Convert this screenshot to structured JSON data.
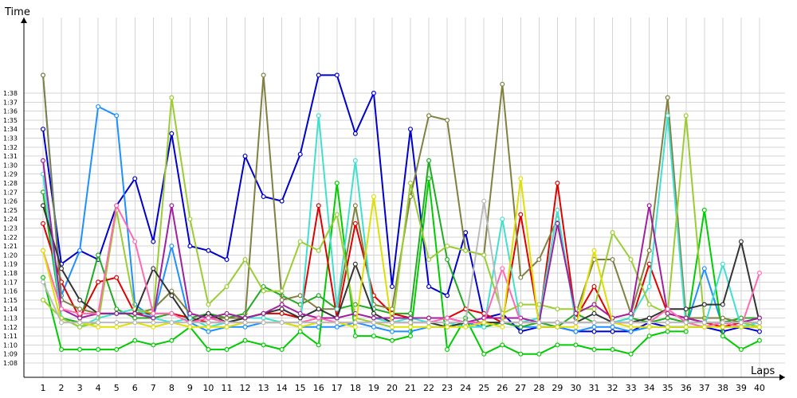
{
  "chart_data": {
    "type": "line",
    "title": "",
    "xlabel": "Laps",
    "ylabel": "Time",
    "xlim": [
      1,
      40
    ],
    "ylim_seconds": [
      61,
      98
    ],
    "grid": true,
    "x_ticks": [
      "1",
      "2",
      "3",
      "4",
      "5",
      "6",
      "7",
      "8",
      "9",
      "10",
      "11",
      "12",
      "13",
      "14",
      "15",
      "16",
      "17",
      "18",
      "19",
      "20",
      "21",
      "22",
      "23",
      "24",
      "25",
      "26",
      "27",
      "28",
      "29",
      "30",
      "31",
      "32",
      "33",
      "34",
      "35",
      "36",
      "37",
      "38",
      "39",
      "40"
    ],
    "y_ticks": [
      "1:08",
      "1:09",
      "1:10",
      "1:11",
      "1:12",
      "1:13",
      "1:14",
      "1:15",
      "1:16",
      "1:17",
      "1:18",
      "1:19",
      "1:20",
      "1:21",
      "1:22",
      "1:23",
      "1:24",
      "1:25",
      "1:26",
      "1:27",
      "1:28",
      "1:29",
      "1:30",
      "1:31",
      "1:32",
      "1:33",
      "1:34",
      "1:35",
      "1:36",
      "1:37",
      "1:38"
    ],
    "series": [
      {
        "color": "#0000cc",
        "values": [
          94,
          79,
          80.5,
          79.5,
          85.5,
          88.5,
          81.5,
          93.5,
          81,
          80.5,
          79.5,
          91,
          86.5,
          86,
          91.2,
          100,
          100,
          93.5,
          98,
          76.5,
          94,
          76.5,
          75.5,
          82.5,
          73,
          73.5,
          71.5,
          72,
          72,
          71.5,
          71.5,
          71.5,
          71.5,
          72.5,
          72,
          72,
          72,
          71.5,
          72,
          71.5
        ]
      },
      {
        "color": "#1e90ff",
        "values": [
          100,
          75.5,
          80.5,
          96.5,
          95.5,
          74.5,
          73,
          81,
          72.5,
          71.5,
          72,
          72,
          72.5,
          72.5,
          72,
          72,
          72,
          72.5,
          72,
          71.5,
          71.5,
          72,
          72,
          72.5,
          72,
          72.5,
          72,
          72,
          72,
          71.5,
          72,
          72,
          71.5,
          72,
          72,
          72,
          78.5,
          72,
          72,
          72
        ]
      },
      {
        "color": "#00cc00",
        "values": [
          77.5,
          69.5,
          69.5,
          69.5,
          69.5,
          70.5,
          70,
          70.5,
          72,
          69.5,
          69.5,
          70.5,
          70,
          69.5,
          71.5,
          70,
          88,
          71,
          71,
          70.5,
          71,
          88.5,
          69.5,
          73,
          69,
          70,
          69,
          69,
          70,
          70,
          69.5,
          69.5,
          69,
          71,
          71.5,
          71.5,
          85,
          71,
          69.5,
          70.5
        ]
      },
      {
        "color": "#22aa22",
        "values": [
          87,
          73,
          72.5,
          80,
          74,
          73,
          73,
          73.5,
          73,
          73.5,
          73,
          73.5,
          76.5,
          75.5,
          74.5,
          75.5,
          74,
          74.5,
          74,
          73.5,
          73.5,
          90.5,
          79.5,
          74,
          72,
          72.5,
          72,
          72.5,
          72,
          73.5,
          72.5,
          72.5,
          73,
          72.5,
          73,
          72.5,
          72.5,
          72.5,
          73,
          73
        ]
      },
      {
        "color": "#e00000",
        "values": [
          83.5,
          77,
          73,
          77,
          77.5,
          73.5,
          73.5,
          73.5,
          73,
          72.5,
          72.5,
          73,
          73.5,
          73.5,
          73,
          85.5,
          73,
          83.5,
          75.5,
          73.5,
          73,
          73,
          73,
          74,
          73.5,
          72.5,
          84.5,
          72.5,
          88,
          73,
          76.5,
          72.5,
          72.5,
          79,
          73.5,
          73,
          72.5,
          72,
          72.5,
          72.5
        ]
      },
      {
        "color": "#808040",
        "values": [
          100,
          75,
          74,
          73.5,
          73.5,
          73.5,
          74,
          76,
          73.5,
          73,
          73,
          73,
          100,
          75,
          75.5,
          74,
          74,
          85.5,
          74.5,
          74,
          86.5,
          95.5,
          95,
          80.5,
          80,
          99,
          77.5,
          79.5,
          84,
          73.5,
          79.5,
          79.5,
          73.5,
          80.5,
          97.5,
          73,
          73,
          73,
          72.5,
          73
        ]
      },
      {
        "color": "#40e0d0",
        "values": [
          89,
          73,
          72,
          73,
          73.5,
          74,
          73,
          72.5,
          73,
          72,
          72.5,
          73,
          73,
          72.5,
          72,
          95.5,
          74,
          90.5,
          73,
          72.5,
          73,
          72.5,
          72.5,
          72,
          72,
          84,
          72.5,
          73,
          85,
          72.5,
          72.5,
          72.5,
          73,
          76.5,
          95.5,
          72,
          72,
          79,
          72,
          72.5
        ]
      },
      {
        "color": "#9acd32",
        "values": [
          75,
          73,
          72,
          72.5,
          85,
          74,
          73.5,
          97.5,
          84,
          74.5,
          76.5,
          79.5,
          76,
          76,
          81.5,
          80.5,
          84.5,
          73,
          72.5,
          72,
          88,
          79.5,
          81,
          80.5,
          80,
          73.5,
          74.5,
          74.5,
          74,
          74,
          74,
          82.5,
          79.5,
          74.5,
          73.5,
          95.5,
          72.5,
          72.5,
          72.5,
          72
        ]
      },
      {
        "color": "#333333",
        "values": [
          85.5,
          78.5,
          75,
          73.5,
          73.5,
          73.5,
          78.5,
          75.5,
          72.5,
          73.5,
          72.5,
          73,
          73.5,
          74,
          73,
          74,
          73,
          79,
          73.5,
          72.5,
          72.5,
          72.5,
          72,
          72.5,
          72.5,
          72.5,
          72.5,
          72.5,
          72.5,
          72.5,
          73.5,
          72.5,
          72.5,
          73,
          74,
          74,
          74.5,
          74.5,
          81.5,
          72.5
        ]
      },
      {
        "color": "#a020a0",
        "values": [
          90.5,
          74,
          73,
          73.5,
          73.5,
          73.5,
          73,
          85.5,
          73.5,
          73,
          73.5,
          73,
          73.5,
          74.5,
          73.5,
          73,
          73,
          73.5,
          73,
          73,
          73,
          73,
          73,
          72.5,
          73,
          73,
          73,
          72.5,
          83.5,
          73.5,
          74.5,
          73,
          73.5,
          85.5,
          73.5,
          73,
          72.5,
          72.5,
          72.5,
          73
        ]
      },
      {
        "color": "#ff69b4",
        "values": [
          80.5,
          74,
          73.5,
          73.5,
          85.5,
          81.5,
          73.5,
          73.5,
          72.5,
          73,
          72.5,
          72.5,
          72.5,
          72.5,
          72.5,
          73,
          72.5,
          72.5,
          72.5,
          72.5,
          72.5,
          72.5,
          73,
          72.5,
          72.5,
          78.5,
          72.5,
          72.5,
          72.5,
          72.5,
          72.5,
          72.5,
          72.5,
          72.5,
          74,
          72.5,
          72,
          72.5,
          72,
          78
        ]
      },
      {
        "color": "#e0e000",
        "values": [
          80.5,
          72.5,
          72.5,
          72,
          72,
          72.5,
          72,
          72.5,
          72,
          72,
          72,
          72.5,
          72.5,
          72.5,
          72,
          72.5,
          72.5,
          72,
          86.5,
          72,
          72,
          72,
          72,
          72,
          72.5,
          72,
          88.5,
          72,
          72,
          72,
          80.5,
          72.5,
          72,
          72,
          72,
          72,
          72,
          72,
          72,
          72
        ]
      },
      {
        "color": "#bbbbbb",
        "values": [
          77,
          72.5,
          72.5,
          72.5,
          72.5,
          72.5,
          72.5,
          72.5,
          72.5,
          72.5,
          72.5,
          72.5,
          72.5,
          72.5,
          72.5,
          72.5,
          72.5,
          72.5,
          72.5,
          72.5,
          72.5,
          72.5,
          72.5,
          72.5,
          86,
          72.5,
          72.5,
          72.5,
          72.5,
          72.5,
          72.5,
          72.5,
          72.5,
          72.5,
          72.5,
          72.5,
          72.5,
          72.5,
          72.5,
          72.5
        ]
      }
    ]
  }
}
